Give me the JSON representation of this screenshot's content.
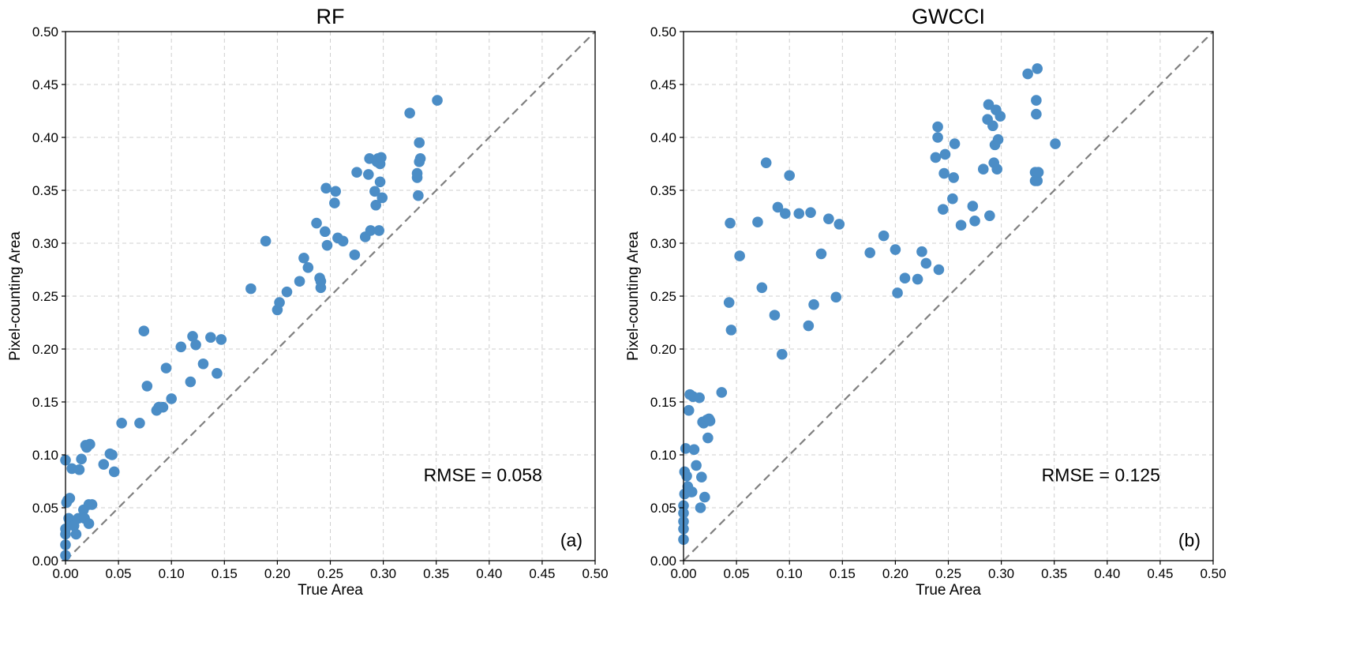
{
  "chart_data": [
    {
      "type": "scatter",
      "title": "RF",
      "xlabel": "True Area",
      "ylabel": "Pixel-counting Area",
      "xlim": [
        0,
        0.5
      ],
      "ylim": [
        0,
        0.5
      ],
      "grid": true,
      "ticks": [
        "0.00",
        "0.05",
        "0.10",
        "0.15",
        "0.20",
        "0.25",
        "0.30",
        "0.35",
        "0.40",
        "0.45",
        "0.50"
      ],
      "reference_line": "y = x (dashed, gray)",
      "marker_color": "#4b8dc6",
      "annotation": "RMSE = 0.058",
      "panel_label": "(a)",
      "series": [
        {
          "name": "RF",
          "x": [
            0.0,
            0.0,
            0.0,
            0.0,
            0.0,
            0.001,
            0.002,
            0.003,
            0.004,
            0.004,
            0.006,
            0.008,
            0.01,
            0.012,
            0.013,
            0.015,
            0.017,
            0.018,
            0.019,
            0.02,
            0.022,
            0.022,
            0.023,
            0.025,
            0.036,
            0.042,
            0.044,
            0.046,
            0.053,
            0.07,
            0.074,
            0.077,
            0.086,
            0.088,
            0.092,
            0.095,
            0.1,
            0.109,
            0.118,
            0.12,
            0.123,
            0.13,
            0.137,
            0.143,
            0.147,
            0.175,
            0.189,
            0.2,
            0.202,
            0.209,
            0.221,
            0.225,
            0.229,
            0.237,
            0.24,
            0.241,
            0.241,
            0.245,
            0.246,
            0.247,
            0.254,
            0.255,
            0.257,
            0.262,
            0.273,
            0.275,
            0.283,
            0.286,
            0.287,
            0.288,
            0.292,
            0.293,
            0.294,
            0.295,
            0.296,
            0.297,
            0.297,
            0.298,
            0.299,
            0.325,
            0.332,
            0.332,
            0.333,
            0.334,
            0.334,
            0.335,
            0.351
          ],
          "y": [
            0.005,
            0.015,
            0.025,
            0.03,
            0.095,
            0.055,
            0.057,
            0.04,
            0.037,
            0.059,
            0.087,
            0.033,
            0.025,
            0.04,
            0.086,
            0.096,
            0.048,
            0.04,
            0.109,
            0.107,
            0.053,
            0.035,
            0.11,
            0.053,
            0.091,
            0.101,
            0.1,
            0.084,
            0.13,
            0.13,
            0.217,
            0.165,
            0.142,
            0.145,
            0.145,
            0.182,
            0.153,
            0.202,
            0.169,
            0.212,
            0.204,
            0.186,
            0.211,
            0.177,
            0.209,
            0.257,
            0.302,
            0.237,
            0.244,
            0.254,
            0.264,
            0.286,
            0.277,
            0.319,
            0.267,
            0.258,
            0.264,
            0.311,
            0.352,
            0.298,
            0.338,
            0.349,
            0.305,
            0.302,
            0.289,
            0.367,
            0.306,
            0.365,
            0.38,
            0.312,
            0.349,
            0.336,
            0.377,
            0.38,
            0.312,
            0.375,
            0.358,
            0.381,
            0.343,
            0.423,
            0.362,
            0.366,
            0.345,
            0.395,
            0.377,
            0.38,
            0.435
          ]
        }
      ]
    },
    {
      "type": "scatter",
      "title": "GWCCI",
      "xlabel": "True Area",
      "ylabel": "Pixel-counting Area",
      "xlim": [
        0,
        0.5
      ],
      "ylim": [
        0,
        0.5
      ],
      "grid": true,
      "ticks": [
        "0.00",
        "0.05",
        "0.10",
        "0.15",
        "0.20",
        "0.25",
        "0.30",
        "0.35",
        "0.40",
        "0.45",
        "0.50"
      ],
      "reference_line": "y = x (dashed, gray)",
      "marker_color": "#4b8dc6",
      "annotation": "RMSE = 0.125",
      "panel_label": "(b)",
      "series": [
        {
          "name": "GWCCI",
          "x": [
            0.0,
            0.0,
            0.0,
            0.0,
            0.0,
            0.001,
            0.001,
            0.002,
            0.003,
            0.004,
            0.005,
            0.006,
            0.007,
            0.008,
            0.009,
            0.01,
            0.012,
            0.015,
            0.016,
            0.017,
            0.018,
            0.019,
            0.02,
            0.022,
            0.023,
            0.024,
            0.025,
            0.036,
            0.043,
            0.044,
            0.045,
            0.053,
            0.07,
            0.074,
            0.078,
            0.086,
            0.089,
            0.093,
            0.096,
            0.1,
            0.109,
            0.118,
            0.12,
            0.123,
            0.13,
            0.137,
            0.144,
            0.147,
            0.176,
            0.189,
            0.2,
            0.202,
            0.209,
            0.221,
            0.225,
            0.229,
            0.238,
            0.24,
            0.24,
            0.241,
            0.245,
            0.246,
            0.247,
            0.254,
            0.255,
            0.256,
            0.262,
            0.273,
            0.275,
            0.283,
            0.287,
            0.288,
            0.289,
            0.292,
            0.293,
            0.294,
            0.295,
            0.296,
            0.297,
            0.299,
            0.325,
            0.332,
            0.332,
            0.333,
            0.333,
            0.334,
            0.334,
            0.335,
            0.351
          ],
          "y": [
            0.02,
            0.03,
            0.037,
            0.045,
            0.052,
            0.063,
            0.084,
            0.106,
            0.08,
            0.07,
            0.142,
            0.157,
            0.065,
            0.065,
            0.155,
            0.105,
            0.09,
            0.154,
            0.05,
            0.079,
            0.131,
            0.13,
            0.06,
            0.133,
            0.116,
            0.134,
            0.132,
            0.159,
            0.244,
            0.319,
            0.218,
            0.288,
            0.32,
            0.258,
            0.376,
            0.232,
            0.334,
            0.195,
            0.328,
            0.364,
            0.328,
            0.222,
            0.329,
            0.242,
            0.29,
            0.323,
            0.249,
            0.318,
            0.291,
            0.307,
            0.294,
            0.253,
            0.267,
            0.266,
            0.292,
            0.281,
            0.381,
            0.41,
            0.4,
            0.275,
            0.332,
            0.366,
            0.384,
            0.342,
            0.362,
            0.394,
            0.317,
            0.335,
            0.321,
            0.37,
            0.417,
            0.431,
            0.326,
            0.411,
            0.376,
            0.393,
            0.426,
            0.37,
            0.398,
            0.42,
            0.46,
            0.367,
            0.359,
            0.422,
            0.435,
            0.465,
            0.359,
            0.367,
            0.394
          ]
        }
      ]
    }
  ]
}
